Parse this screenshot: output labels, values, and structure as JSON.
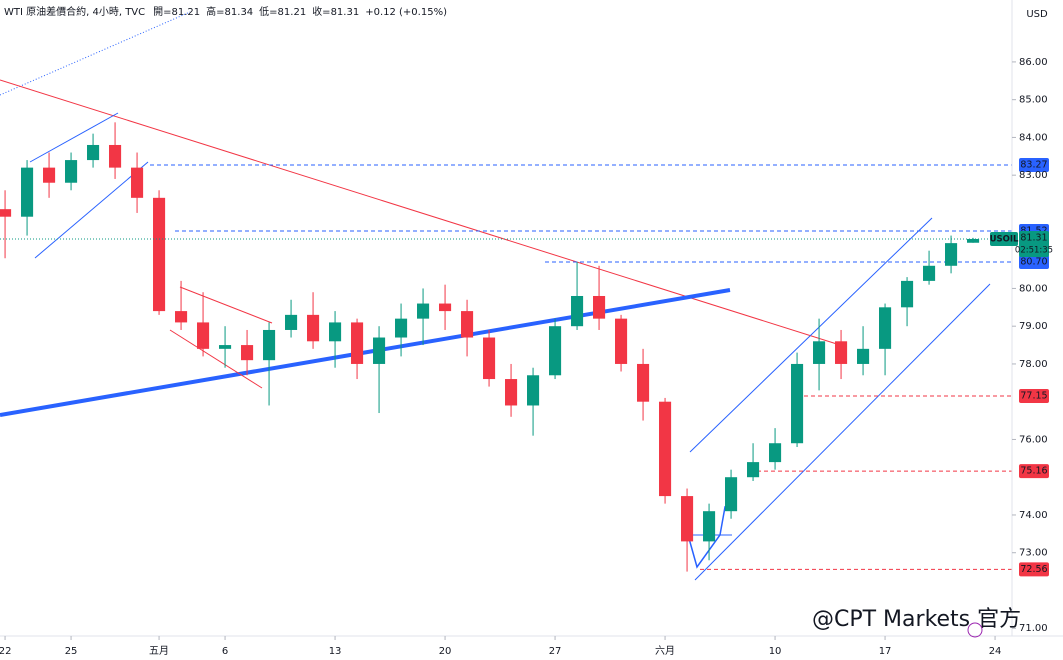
{
  "chart_data": {
    "type": "candlestick",
    "title": "WTI 原油差價合約, 4小時, TVC",
    "header_items": [
      "開=81.21",
      "高=81.34",
      "低=81.21",
      "收=81.31",
      "+0.12 (+0.15%)"
    ],
    "currency": "USD",
    "watermark": "@CPT Markets 官方",
    "up_color": "#089981",
    "down_color": "#f23645",
    "xlim": [
      -0.23,
      45.77
    ],
    "xticks": [
      {
        "value": 0,
        "label": "22"
      },
      {
        "value": 3,
        "label": "25"
      },
      {
        "value": 7,
        "label": "五月"
      },
      {
        "value": 10,
        "label": "6"
      },
      {
        "value": 15,
        "label": "13"
      },
      {
        "value": 20,
        "label": "20"
      },
      {
        "value": 25,
        "label": "27"
      },
      {
        "value": 30,
        "label": "六月"
      },
      {
        "value": 35,
        "label": "10"
      },
      {
        "value": 40,
        "label": "17"
      },
      {
        "value": 45,
        "label": "24"
      }
    ],
    "ylim": [
      70.9,
      87.64
    ],
    "yticks": [
      {
        "value": 86,
        "label": "86.00"
      },
      {
        "value": 85,
        "label": "85.00"
      },
      {
        "value": 84,
        "label": "84.00"
      },
      {
        "value": 83,
        "label": "83.00"
      },
      {
        "value": 80,
        "label": "80.00"
      },
      {
        "value": 79,
        "label": "79.00"
      },
      {
        "value": 78,
        "label": "78.00"
      },
      {
        "value": 76,
        "label": "76.00"
      },
      {
        "value": 74,
        "label": "74.00"
      },
      {
        "value": 73,
        "label": "73.00"
      },
      {
        "value": 71,
        "label": "71.00"
      }
    ],
    "x": [
      0,
      1,
      2,
      3,
      4,
      5,
      6,
      7,
      8,
      9,
      10,
      11,
      12,
      13,
      14,
      15,
      16,
      17,
      18,
      19,
      20,
      21,
      22,
      23,
      24,
      25,
      26,
      27,
      28,
      29,
      30,
      31,
      32,
      33,
      34,
      35,
      36,
      37,
      38,
      39,
      40,
      41,
      42,
      43,
      44
    ],
    "open": [
      82.1,
      81.9,
      83.2,
      82.8,
      83.4,
      83.8,
      83.2,
      82.4,
      79.4,
      79.1,
      78.4,
      78.5,
      78.1,
      78.9,
      79.3,
      78.6,
      79.1,
      78.0,
      78.7,
      79.2,
      79.6,
      79.4,
      78.7,
      77.6,
      76.9,
      77.7,
      79.0,
      79.8,
      79.2,
      78.0,
      77.0,
      74.5,
      73.3,
      74.1,
      75.0,
      75.4,
      75.9,
      78.0,
      78.6,
      78.0,
      78.4,
      79.5,
      80.2,
      80.6,
      81.21
    ],
    "high": [
      82.6,
      83.4,
      83.6,
      83.6,
      84.1,
      84.4,
      83.6,
      82.6,
      80.2,
      79.9,
      79.0,
      78.9,
      79.1,
      79.7,
      79.9,
      79.4,
      79.2,
      79.0,
      79.6,
      80.0,
      80.1,
      79.7,
      78.9,
      78.0,
      77.9,
      79.2,
      80.7,
      80.6,
      79.3,
      78.4,
      77.1,
      74.7,
      74.3,
      75.2,
      75.9,
      76.3,
      78.3,
      79.2,
      78.9,
      79.0,
      79.6,
      80.3,
      81.0,
      81.4,
      81.34
    ],
    "low": [
      80.8,
      81.4,
      82.4,
      82.6,
      83.2,
      82.9,
      82.0,
      79.3,
      78.9,
      78.2,
      77.9,
      77.7,
      76.9,
      78.7,
      78.4,
      77.9,
      77.6,
      76.7,
      78.2,
      78.5,
      78.9,
      78.2,
      77.4,
      76.6,
      76.1,
      77.6,
      78.9,
      78.9,
      77.8,
      76.5,
      74.3,
      72.5,
      72.8,
      73.9,
      74.9,
      75.2,
      75.8,
      77.3,
      77.6,
      77.7,
      77.7,
      79.0,
      80.1,
      80.4,
      81.21
    ],
    "close": [
      81.9,
      83.2,
      82.8,
      83.4,
      83.8,
      83.2,
      82.4,
      79.4,
      79.1,
      78.4,
      78.5,
      78.1,
      78.9,
      79.3,
      78.6,
      79.1,
      78.0,
      78.7,
      79.2,
      79.6,
      79.4,
      78.7,
      77.6,
      76.9,
      77.7,
      79.0,
      79.8,
      79.2,
      78.0,
      77.0,
      74.5,
      73.3,
      74.1,
      75.0,
      75.4,
      75.9,
      78.0,
      78.6,
      78.0,
      78.4,
      79.5,
      80.2,
      80.6,
      81.2,
      81.31
    ],
    "levels": [
      {
        "value": 83.27,
        "color": "#2962ff"
      },
      {
        "value": 81.52,
        "color": "#2962ff"
      },
      {
        "value": 80.7,
        "label": "80.70",
        "color": "#2962ff"
      },
      {
        "value": 77.15,
        "color": "#f23645"
      },
      {
        "value": 75.16,
        "color": "#f23645"
      },
      {
        "value": 72.56,
        "color": "#f23645"
      }
    ],
    "last_price": {
      "symbol": "USOIL",
      "value": 81.31,
      "countdown": "02:51:35",
      "color": "#089981"
    }
  }
}
